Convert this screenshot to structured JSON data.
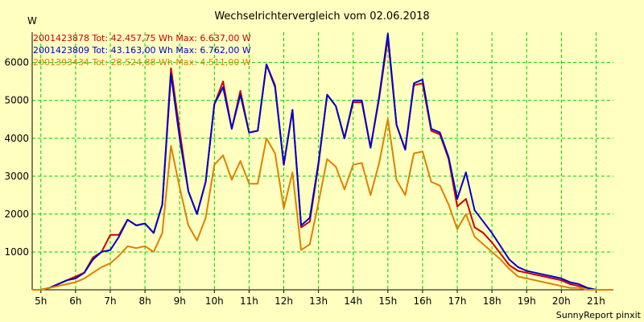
{
  "chart_data": {
    "type": "line",
    "title": "Wechselrichtervergleich vom 02.06.2018",
    "ylabel": "W",
    "footer": "SunnyReport pinxit",
    "ylim": [
      0,
      6800
    ],
    "xlim": [
      4.75,
      21.5
    ],
    "y_ticks": [
      1000,
      2000,
      3000,
      4000,
      5000,
      6000
    ],
    "x_ticks": [
      5,
      6,
      7,
      8,
      9,
      10,
      11,
      12,
      13,
      14,
      15,
      16,
      17,
      18,
      19,
      20,
      21
    ],
    "x_tick_labels": [
      "5h",
      "6h",
      "7h",
      "8h",
      "9h",
      "10h",
      "11h",
      "12h",
      "13h",
      "14h",
      "15h",
      "16h",
      "17h",
      "18h",
      "19h",
      "20h",
      "21h"
    ],
    "grid": true,
    "legend_position": "top-left",
    "x": [
      4.75,
      5.0,
      5.25,
      5.5,
      5.75,
      6.0,
      6.25,
      6.5,
      6.75,
      7.0,
      7.25,
      7.5,
      7.75,
      8.0,
      8.25,
      8.5,
      8.75,
      9.0,
      9.25,
      9.5,
      9.75,
      10.0,
      10.25,
      10.5,
      10.75,
      11.0,
      11.25,
      11.5,
      11.75,
      12.0,
      12.25,
      12.5,
      12.75,
      13.0,
      13.25,
      13.5,
      13.75,
      14.0,
      14.25,
      14.5,
      14.75,
      15.0,
      15.25,
      15.5,
      15.75,
      16.0,
      16.25,
      16.5,
      16.75,
      17.0,
      17.25,
      17.5,
      17.75,
      18.0,
      18.25,
      18.5,
      18.75,
      19.0,
      19.25,
      19.5,
      19.75,
      20.0,
      20.25,
      20.5,
      20.75,
      21.0,
      21.25,
      21.5
    ],
    "series": [
      {
        "name": "2001423878 Tot: 42.457,75 Wh Max: 6.637,00 W",
        "color": "#cc0000",
        "values": [
          0,
          0,
          50,
          150,
          250,
          350,
          450,
          850,
          1000,
          1450,
          1450,
          1850,
          1700,
          1750,
          1500,
          2250,
          5850,
          4200,
          2600,
          2000,
          2850,
          4900,
          5500,
          4250,
          5250,
          4150,
          4200,
          5950,
          5400,
          3300,
          4750,
          1650,
          1800,
          3300,
          5150,
          4850,
          4000,
          4950,
          4950,
          3750,
          5050,
          6637,
          4350,
          3700,
          5400,
          5450,
          4200,
          4100,
          3450,
          2200,
          2400,
          1650,
          1500,
          1250,
          950,
          650,
          500,
          450,
          400,
          350,
          300,
          250,
          150,
          100,
          50,
          0,
          0,
          0
        ]
      },
      {
        "name": "2001423809 Tot: 43.163,00 Wh Max: 6.762,00 W",
        "color": "#0000cc",
        "values": [
          0,
          0,
          50,
          150,
          250,
          300,
          450,
          800,
          1000,
          1050,
          1400,
          1850,
          1700,
          1750,
          1500,
          2250,
          5700,
          4000,
          2600,
          2000,
          2850,
          4900,
          5350,
          4250,
          5150,
          4150,
          4200,
          5950,
          5350,
          3300,
          4750,
          1700,
          1900,
          3350,
          5150,
          4850,
          4000,
          5000,
          5000,
          3750,
          5100,
          6762,
          4350,
          3700,
          5450,
          5550,
          4250,
          4150,
          3500,
          2400,
          3100,
          2100,
          1800,
          1500,
          1150,
          800,
          600,
          500,
          450,
          400,
          350,
          300,
          200,
          150,
          50,
          0,
          0,
          0
        ]
      },
      {
        "name": "2001393434 Tot: 28.524,88 Wh Max: 4.511,00 W",
        "color": "#e08000",
        "values": [
          0,
          0,
          50,
          100,
          150,
          200,
          300,
          450,
          600,
          700,
          900,
          1150,
          1100,
          1150,
          1000,
          1500,
          3800,
          2700,
          1700,
          1300,
          1900,
          3300,
          3550,
          2900,
          3400,
          2800,
          2800,
          4000,
          3600,
          2150,
          3100,
          1050,
          1200,
          2300,
          3450,
          3250,
          2650,
          3300,
          3350,
          2500,
          3350,
          4511,
          2900,
          2500,
          3600,
          3650,
          2850,
          2750,
          2250,
          1600,
          2000,
          1400,
          1200,
          1000,
          800,
          550,
          350,
          300,
          250,
          200,
          150,
          100,
          50,
          50,
          0,
          0,
          0,
          0
        ]
      }
    ]
  }
}
